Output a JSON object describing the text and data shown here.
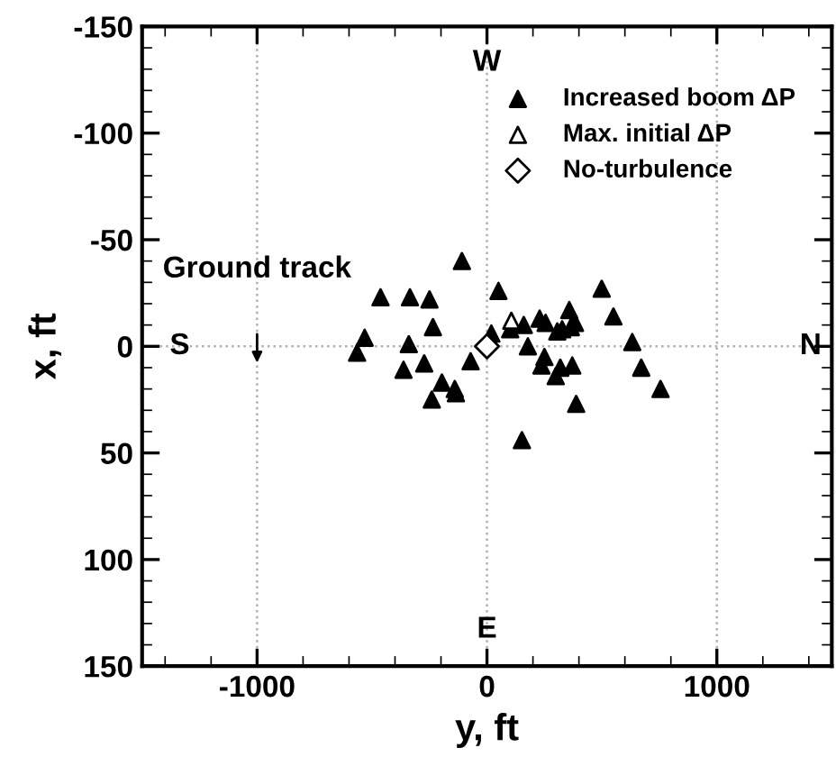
{
  "chart_data": {
    "type": "scatter",
    "xlabel": "y, ft",
    "ylabel": "x, ft",
    "xlim": [
      -1500,
      1500
    ],
    "ylim": [
      150,
      -150
    ],
    "xticks": [
      -1000,
      0,
      1000
    ],
    "yticks": [
      -150,
      -100,
      -50,
      0,
      50,
      100,
      150
    ],
    "grid": "x",
    "legend": "top right",
    "ref_lines": [
      {
        "axis": "y",
        "value": 0,
        "line_style": "dotted",
        "color": "#b0b0b0"
      }
    ],
    "annotations": [
      "W",
      "E",
      "S",
      "N",
      "Ground track"
    ],
    "series": [
      {
        "name": "Increased boom ΔP",
        "color": "#000000",
        "marker": "triangle",
        "x": [
          -109,
          -463,
          -335,
          -250,
          -235,
          -532,
          -340,
          -565,
          -273,
          -363,
          -71,
          19,
          50,
          -196,
          -140,
          -135,
          -240,
          152,
          160,
          101,
          178,
          229,
          255,
          250,
          237,
          499,
          550,
          358,
          383,
          365,
          306,
          327,
          632,
          371,
          319,
          299,
          671,
          755,
          388
        ],
        "values": [
          -40,
          -23,
          -23,
          -22,
          -9,
          -4,
          -1,
          3,
          8,
          11,
          7,
          -6,
          -26,
          17,
          20,
          22,
          25,
          44,
          -10,
          -8,
          0,
          -13,
          -11,
          5,
          9,
          -27,
          -14,
          -17,
          -11,
          -9,
          -7,
          -8,
          -2,
          9,
          10,
          14,
          10,
          20,
          27
        ]
      },
      {
        "name": "Max. initial ΔP",
        "color": "#000000",
        "marker": "triangle",
        "x": [
          106
        ],
        "values": [
          -12
        ]
      },
      {
        "name": "No-turbulence",
        "color": "#000000",
        "marker": "diamond",
        "x": [
          0
        ],
        "values": [
          0
        ]
      }
    ]
  }
}
